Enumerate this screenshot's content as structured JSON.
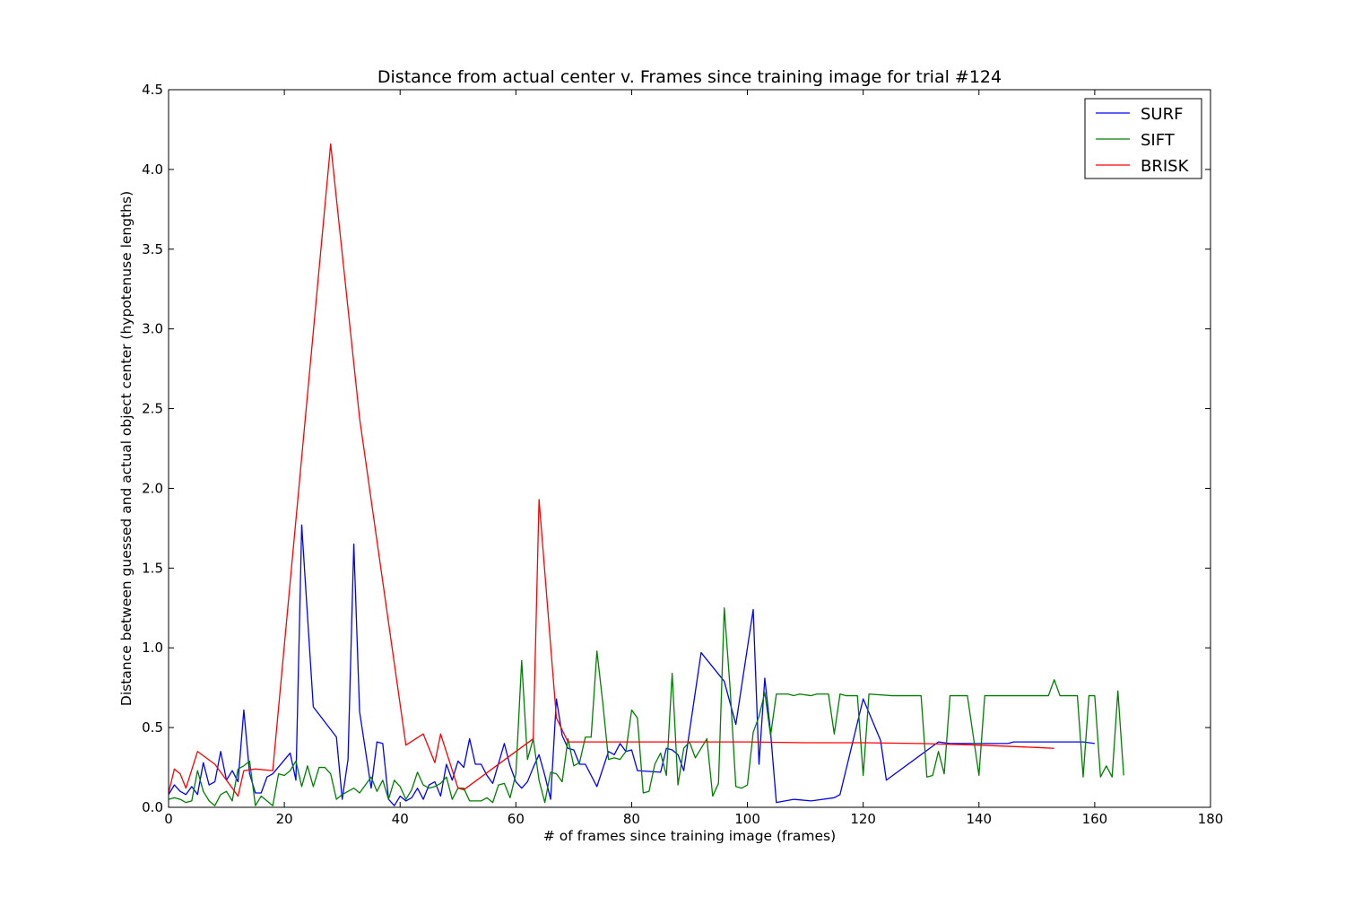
{
  "chart_data": {
    "type": "line",
    "title": "Distance from actual center v. Frames since training image for trial #124",
    "xlabel": "# of frames since training image (frames)",
    "ylabel": "Distance between guessed and actual object center (hypotenuse lengths)",
    "xlim": [
      0,
      180
    ],
    "ylim": [
      0,
      4.5
    ],
    "xticks": [
      0,
      20,
      40,
      60,
      80,
      100,
      120,
      140,
      160,
      180
    ],
    "yticks": [
      0.0,
      0.5,
      1.0,
      1.5,
      2.0,
      2.5,
      3.0,
      3.5,
      4.0,
      4.5
    ],
    "xtick_labels": [
      "0",
      "20",
      "40",
      "60",
      "80",
      "100",
      "120",
      "140",
      "160",
      "180"
    ],
    "ytick_labels": [
      "0.0",
      "0.5",
      "1.0",
      "1.5",
      "2.0",
      "2.5",
      "3.0",
      "3.5",
      "4.0",
      "4.5"
    ],
    "grid": false,
    "legend_position": "top-right",
    "series": [
      {
        "name": "SURF",
        "color": "#0000ff",
        "points": [
          [
            0,
            0.08
          ],
          [
            1,
            0.14
          ],
          [
            2,
            0.1
          ],
          [
            3,
            0.08
          ],
          [
            4,
            0.13
          ],
          [
            5,
            0.08
          ],
          [
            6,
            0.28
          ],
          [
            7,
            0.14
          ],
          [
            8,
            0.16
          ],
          [
            9,
            0.35
          ],
          [
            10,
            0.17
          ],
          [
            11,
            0.23
          ],
          [
            12,
            0.16
          ],
          [
            13,
            0.61
          ],
          [
            14,
            0.21
          ],
          [
            15,
            0.09
          ],
          [
            16,
            0.09
          ],
          [
            17,
            0.19
          ],
          [
            18,
            0.21
          ],
          [
            21,
            0.34
          ],
          [
            22,
            0.17
          ],
          [
            23,
            1.77
          ],
          [
            25,
            0.63
          ],
          [
            29,
            0.44
          ],
          [
            30,
            0.05
          ],
          [
            31,
            0.3
          ],
          [
            32,
            1.65
          ],
          [
            33,
            0.6
          ],
          [
            35,
            0.12
          ],
          [
            36,
            0.41
          ],
          [
            37,
            0.4
          ],
          [
            38,
            0.05
          ],
          [
            39,
            0.01
          ],
          [
            40,
            0.07
          ],
          [
            41,
            0.04
          ],
          [
            42,
            0.06
          ],
          [
            43,
            0.12
          ],
          [
            44,
            0.05
          ],
          [
            45,
            0.14
          ],
          [
            46,
            0.16
          ],
          [
            47,
            0.07
          ],
          [
            48,
            0.27
          ],
          [
            49,
            0.17
          ],
          [
            50,
            0.29
          ],
          [
            51,
            0.25
          ],
          [
            52,
            0.43
          ],
          [
            53,
            0.27
          ],
          [
            54,
            0.27
          ],
          [
            55,
            0.2
          ],
          [
            56,
            0.15
          ],
          [
            58,
            0.4
          ],
          [
            59,
            0.26
          ],
          [
            60,
            0.16
          ],
          [
            61,
            0.12
          ],
          [
            62,
            0.16
          ],
          [
            63,
            0.25
          ],
          [
            64,
            0.33
          ],
          [
            65,
            0.2
          ],
          [
            66,
            0.05
          ],
          [
            67,
            0.68
          ],
          [
            68,
            0.45
          ],
          [
            69,
            0.37
          ],
          [
            70,
            0.36
          ],
          [
            71,
            0.27
          ],
          [
            72,
            0.27
          ],
          [
            74,
            0.13
          ],
          [
            76,
            0.35
          ],
          [
            77,
            0.33
          ],
          [
            78,
            0.4
          ],
          [
            79,
            0.35
          ],
          [
            80,
            0.36
          ],
          [
            81,
            0.23
          ],
          [
            85,
            0.22
          ],
          [
            86,
            0.37
          ],
          [
            87,
            0.36
          ],
          [
            88,
            0.33
          ],
          [
            89,
            0.23
          ],
          [
            92,
            0.97
          ],
          [
            96,
            0.79
          ],
          [
            98,
            0.52
          ],
          [
            101,
            1.24
          ],
          [
            102,
            0.27
          ],
          [
            103,
            0.81
          ],
          [
            104,
            0.47
          ],
          [
            105,
            0.03
          ],
          [
            108,
            0.05
          ],
          [
            111,
            0.04
          ],
          [
            115,
            0.06
          ],
          [
            116,
            0.08
          ],
          [
            120,
            0.68
          ],
          [
            123,
            0.42
          ],
          [
            124,
            0.17
          ],
          [
            133,
            0.41
          ],
          [
            135,
            0.4
          ],
          [
            145,
            0.4
          ],
          [
            146,
            0.41
          ],
          [
            158,
            0.41
          ],
          [
            160,
            0.4
          ]
        ]
      },
      {
        "name": "SIFT",
        "color": "#008000",
        "points": [
          [
            0,
            0.05
          ],
          [
            1,
            0.06
          ],
          [
            2,
            0.05
          ],
          [
            3,
            0.03
          ],
          [
            4,
            0.04
          ],
          [
            5,
            0.23
          ],
          [
            6,
            0.1
          ],
          [
            7,
            0.04
          ],
          [
            8,
            0.01
          ],
          [
            9,
            0.08
          ],
          [
            10,
            0.1
          ],
          [
            11,
            0.04
          ],
          [
            12,
            0.24
          ],
          [
            13,
            0.26
          ],
          [
            14,
            0.29
          ],
          [
            15,
            0.01
          ],
          [
            16,
            0.07
          ],
          [
            17,
            0.04
          ],
          [
            18,
            0.01
          ],
          [
            19,
            0.21
          ],
          [
            20,
            0.2
          ],
          [
            21,
            0.23
          ],
          [
            22,
            0.29
          ],
          [
            23,
            0.13
          ],
          [
            24,
            0.26
          ],
          [
            25,
            0.13
          ],
          [
            26,
            0.25
          ],
          [
            27,
            0.25
          ],
          [
            28,
            0.21
          ],
          [
            29,
            0.05
          ],
          [
            30,
            0.08
          ],
          [
            31,
            0.1
          ],
          [
            32,
            0.12
          ],
          [
            33,
            0.09
          ],
          [
            34,
            0.14
          ],
          [
            35,
            0.19
          ],
          [
            36,
            0.1
          ],
          [
            37,
            0.17
          ],
          [
            38,
            0.05
          ],
          [
            39,
            0.17
          ],
          [
            40,
            0.13
          ],
          [
            41,
            0.05
          ],
          [
            42,
            0.11
          ],
          [
            43,
            0.22
          ],
          [
            44,
            0.14
          ],
          [
            45,
            0.12
          ],
          [
            46,
            0.13
          ],
          [
            47,
            0.15
          ],
          [
            48,
            0.19
          ],
          [
            49,
            0.05
          ],
          [
            50,
            0.12
          ],
          [
            51,
            0.12
          ],
          [
            52,
            0.04
          ],
          [
            53,
            0.04
          ],
          [
            54,
            0.04
          ],
          [
            55,
            0.06
          ],
          [
            56,
            0.03
          ],
          [
            57,
            0.14
          ],
          [
            58,
            0.15
          ],
          [
            59,
            0.06
          ],
          [
            60,
            0.21
          ],
          [
            61,
            0.92
          ],
          [
            62,
            0.3
          ],
          [
            63,
            0.43
          ],
          [
            64,
            0.17
          ],
          [
            65,
            0.03
          ],
          [
            66,
            0.22
          ],
          [
            67,
            0.21
          ],
          [
            68,
            0.16
          ],
          [
            69,
            0.43
          ],
          [
            70,
            0.26
          ],
          [
            71,
            0.28
          ],
          [
            72,
            0.44
          ],
          [
            73,
            0.44
          ],
          [
            74,
            0.98
          ],
          [
            75,
            0.66
          ],
          [
            76,
            0.3
          ],
          [
            77,
            0.31
          ],
          [
            78,
            0.3
          ],
          [
            79,
            0.35
          ],
          [
            80,
            0.61
          ],
          [
            81,
            0.56
          ],
          [
            82,
            0.09
          ],
          [
            83,
            0.1
          ],
          [
            84,
            0.27
          ],
          [
            85,
            0.34
          ],
          [
            86,
            0.2
          ],
          [
            87,
            0.84
          ],
          [
            88,
            0.14
          ],
          [
            89,
            0.37
          ],
          [
            90,
            0.41
          ],
          [
            91,
            0.31
          ],
          [
            92,
            0.37
          ],
          [
            93,
            0.43
          ],
          [
            94,
            0.07
          ],
          [
            95,
            0.15
          ],
          [
            96,
            1.25
          ],
          [
            97,
            0.75
          ],
          [
            98,
            0.13
          ],
          [
            99,
            0.12
          ],
          [
            100,
            0.14
          ],
          [
            101,
            0.47
          ],
          [
            102,
            0.57
          ],
          [
            103,
            0.72
          ],
          [
            104,
            0.45
          ],
          [
            105,
            0.71
          ],
          [
            107,
            0.71
          ],
          [
            108,
            0.7
          ],
          [
            109,
            0.71
          ],
          [
            111,
            0.7
          ],
          [
            112,
            0.71
          ],
          [
            114,
            0.71
          ],
          [
            115,
            0.46
          ],
          [
            116,
            0.71
          ],
          [
            117,
            0.7
          ],
          [
            119,
            0.7
          ],
          [
            120,
            0.2
          ],
          [
            121,
            0.71
          ],
          [
            125,
            0.7
          ],
          [
            129,
            0.7
          ],
          [
            130,
            0.7
          ],
          [
            131,
            0.19
          ],
          [
            132,
            0.2
          ],
          [
            133,
            0.35
          ],
          [
            134,
            0.21
          ],
          [
            135,
            0.7
          ],
          [
            138,
            0.7
          ],
          [
            140,
            0.2
          ],
          [
            141,
            0.7
          ],
          [
            146,
            0.7
          ],
          [
            152,
            0.7
          ],
          [
            153,
            0.8
          ],
          [
            154,
            0.7
          ],
          [
            157,
            0.7
          ],
          [
            158,
            0.19
          ],
          [
            159,
            0.7
          ],
          [
            160,
            0.7
          ],
          [
            161,
            0.19
          ],
          [
            162,
            0.26
          ],
          [
            163,
            0.19
          ],
          [
            164,
            0.73
          ],
          [
            165,
            0.2
          ]
        ]
      },
      {
        "name": "BRISK",
        "color": "#ff0000",
        "points": [
          [
            0,
            0.09
          ],
          [
            1,
            0.24
          ],
          [
            2,
            0.21
          ],
          [
            3,
            0.12
          ],
          [
            5,
            0.35
          ],
          [
            8,
            0.27
          ],
          [
            10,
            0.17
          ],
          [
            12,
            0.07
          ],
          [
            13,
            0.23
          ],
          [
            15,
            0.24
          ],
          [
            18,
            0.23
          ],
          [
            28,
            4.16
          ],
          [
            33,
            2.44
          ],
          [
            41,
            0.39
          ],
          [
            44,
            0.46
          ],
          [
            46,
            0.28
          ],
          [
            47,
            0.46
          ],
          [
            50,
            0.12
          ],
          [
            51,
            0.11
          ],
          [
            63,
            0.43
          ],
          [
            64,
            1.93
          ],
          [
            67,
            0.56
          ],
          [
            69,
            0.41
          ],
          [
            75,
            0.41
          ],
          [
            90,
            0.41
          ],
          [
            100,
            0.41
          ],
          [
            110,
            0.405
          ],
          [
            120,
            0.405
          ],
          [
            130,
            0.4
          ],
          [
            140,
            0.39
          ],
          [
            150,
            0.375
          ],
          [
            153,
            0.37
          ]
        ]
      }
    ]
  }
}
